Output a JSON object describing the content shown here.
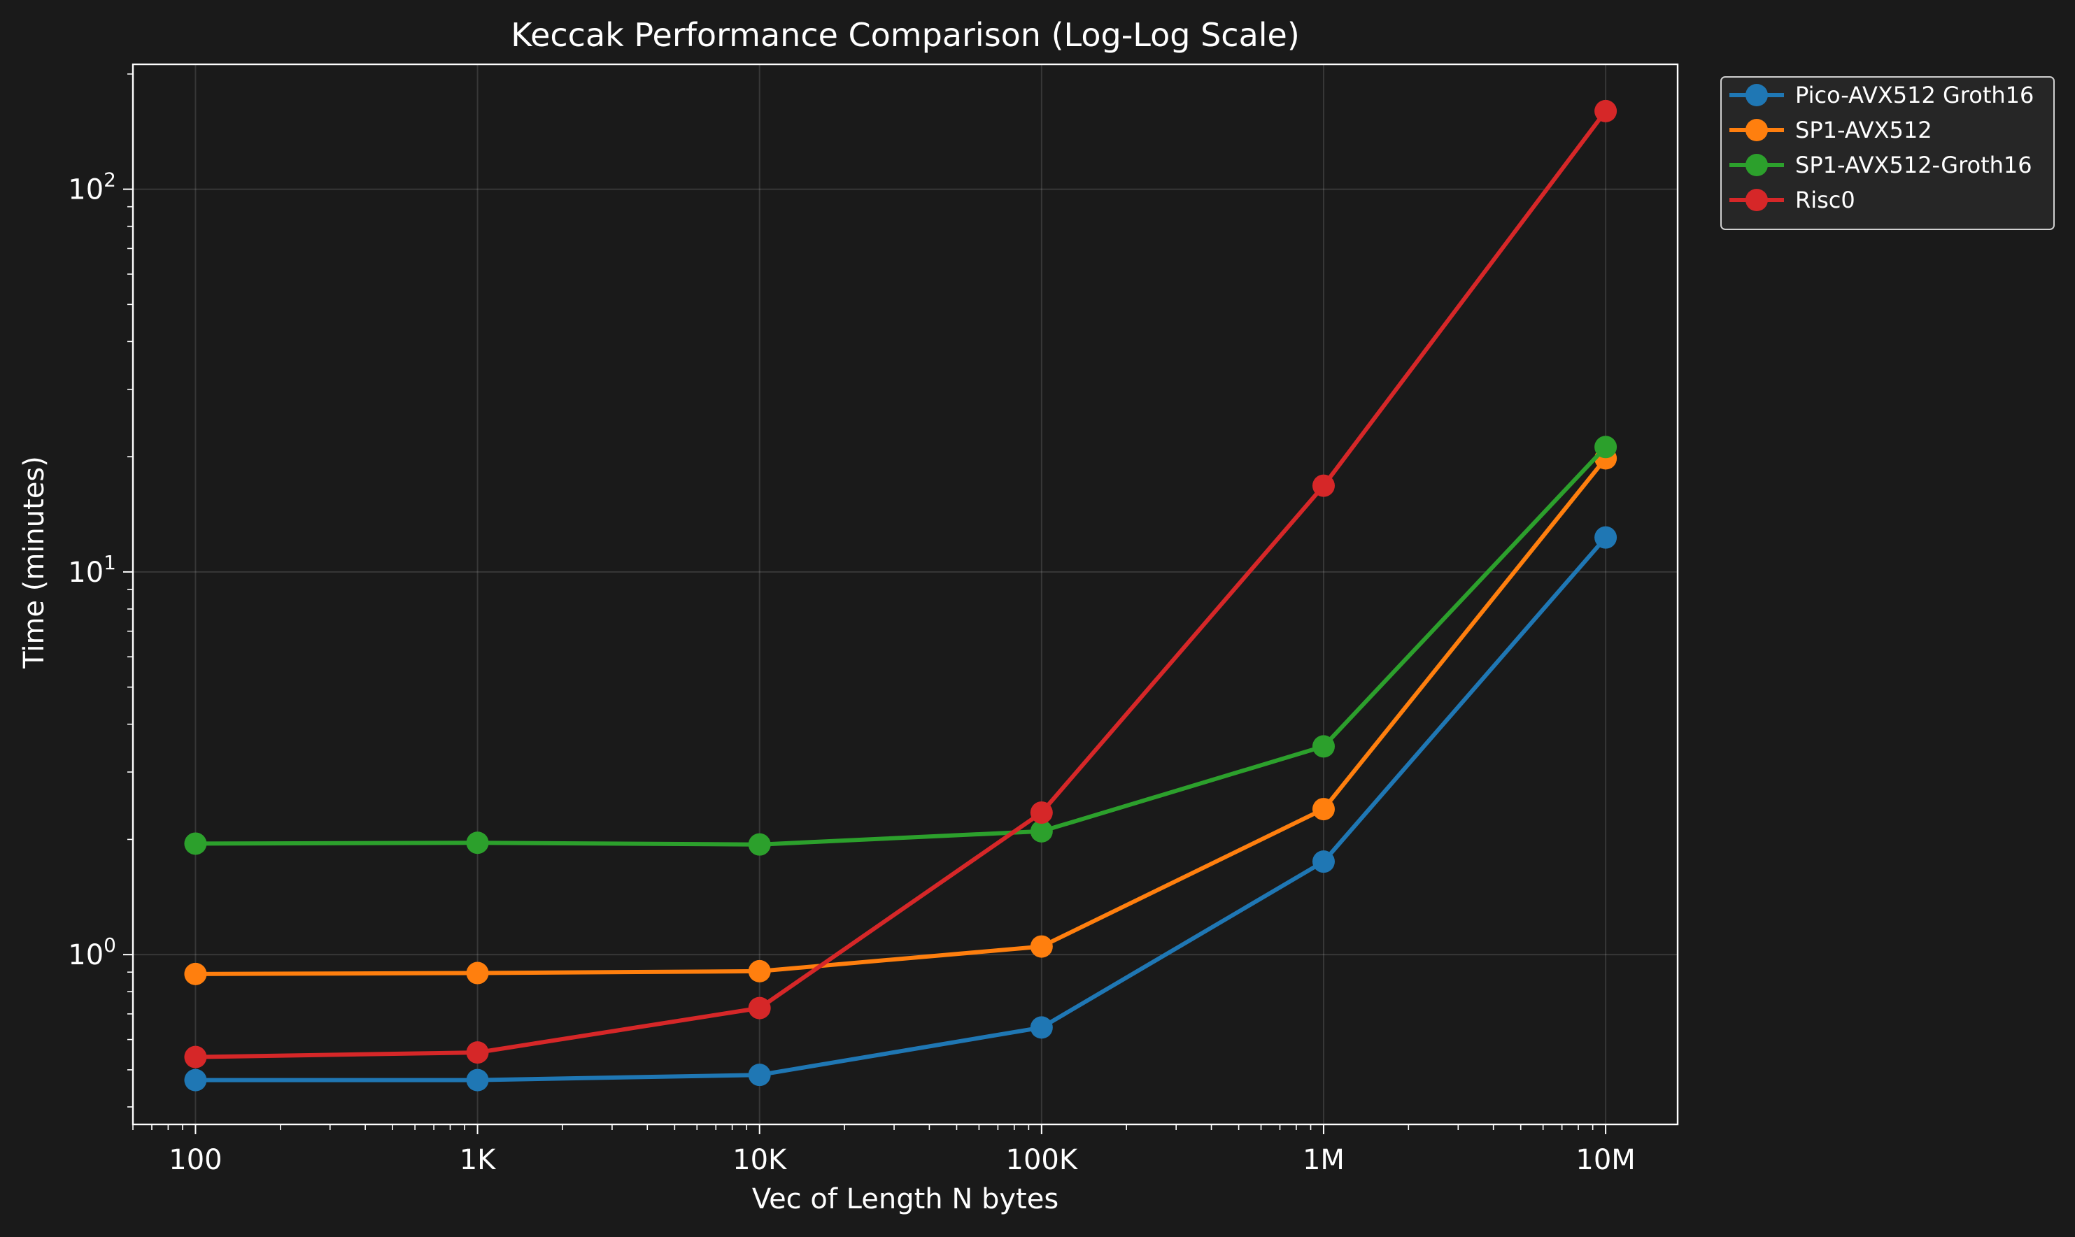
{
  "chart_data": {
    "type": "line",
    "title": "Keccak Performance Comparison (Log-Log Scale)",
    "xlabel": "Vec of Length N bytes",
    "ylabel": "Time (minutes)",
    "xscale": "log",
    "yscale": "log",
    "x": [
      100,
      1000,
      10000,
      100000,
      1000000,
      10000000
    ],
    "x_tick_labels": [
      "100",
      "1K",
      "10K",
      "100K",
      "1M",
      "10M"
    ],
    "y_ticks": [
      {
        "value": 1,
        "base": "10",
        "exp": "0"
      },
      {
        "value": 10,
        "base": "10",
        "exp": "1"
      },
      {
        "value": 100,
        "base": "10",
        "exp": "2"
      }
    ],
    "xlim": [
      60,
      18000000
    ],
    "ylim": [
      0.36,
      212
    ],
    "grid": true,
    "legend_position": "outside top-right",
    "series": [
      {
        "name": "Pico-AVX512 Groth16",
        "color": "#1f77b4",
        "values": [
          0.47,
          0.47,
          0.485,
          0.645,
          1.75,
          12.3
        ]
      },
      {
        "name": "SP1-AVX512",
        "color": "#ff7f0e",
        "values": [
          0.89,
          0.895,
          0.905,
          1.05,
          2.4,
          19.8
        ]
      },
      {
        "name": "SP1-AVX512-Groth16",
        "color": "#2ca02c",
        "values": [
          1.95,
          1.96,
          1.94,
          2.1,
          3.5,
          21.2
        ]
      },
      {
        "name": "Risc0",
        "color": "#d62728",
        "values": [
          0.54,
          0.555,
          0.725,
          2.35,
          16.8,
          160
        ]
      }
    ]
  }
}
